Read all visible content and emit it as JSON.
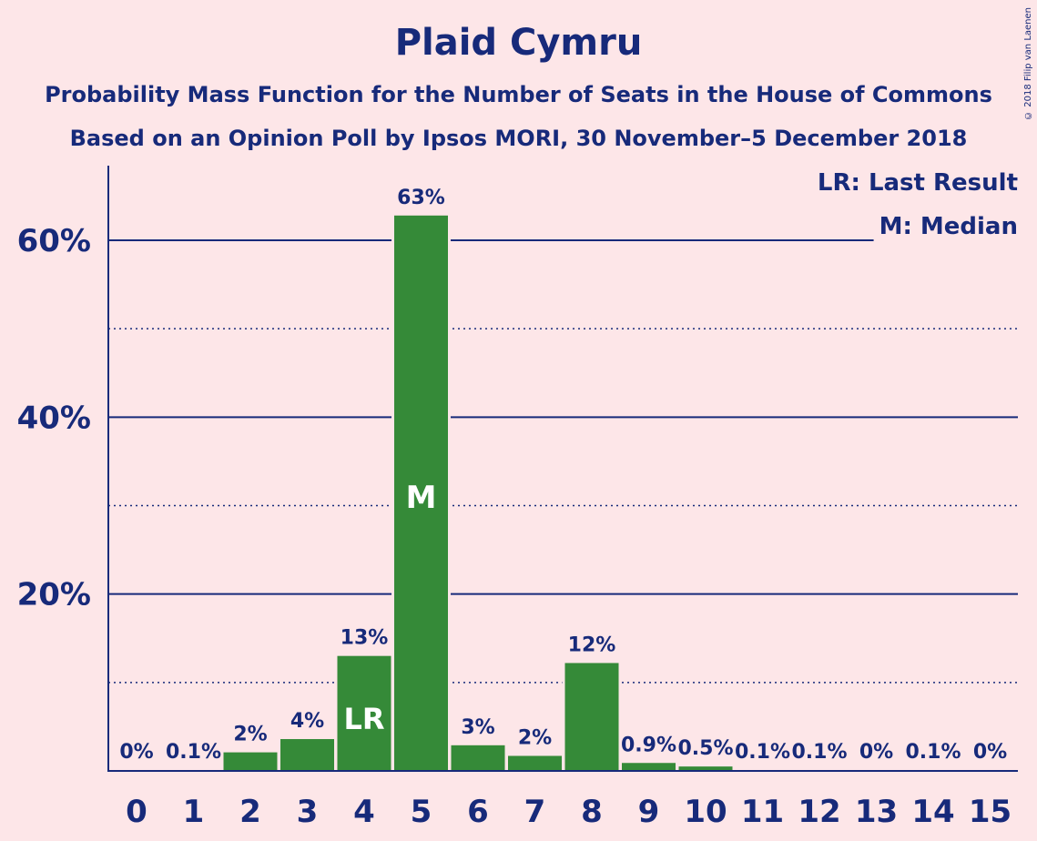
{
  "title": "Plaid Cymru",
  "subtitle1": "Probability Mass Function for the Number of Seats in the House of Commons",
  "subtitle2": "Based on an Opinion Poll by Ipsos MORI, 30 November–5 December 2018",
  "copyright": "© 2018 Filip van Laenen",
  "legend": {
    "last_result": "LR: Last Result",
    "median": "M: Median"
  },
  "colors": {
    "bar": "#358a38",
    "text": "#172a7a",
    "background": "#fde6e8"
  },
  "chart_data": {
    "type": "bar",
    "categories": [
      "0",
      "1",
      "2",
      "3",
      "4",
      "5",
      "6",
      "7",
      "8",
      "9",
      "10",
      "11",
      "12",
      "13",
      "14",
      "15"
    ],
    "values": [
      0,
      0.1,
      2.1,
      3.6,
      13.0,
      62.8,
      2.9,
      1.7,
      12.2,
      0.9,
      0.5,
      0.1,
      0.1,
      0,
      0.1,
      0
    ],
    "labels": [
      "0%",
      "0.1%",
      "2%",
      "4%",
      "13%",
      "63%",
      "3%",
      "2%",
      "12%",
      "0.9%",
      "0.5%",
      "0.1%",
      "0.1%",
      "0%",
      "0.1%",
      "0%"
    ],
    "ylim": [
      0,
      68
    ],
    "yticks": [
      20,
      40,
      60
    ],
    "ytick_labels": [
      "20%",
      "40%",
      "60%"
    ],
    "minor_grid": [
      10,
      30,
      50
    ],
    "last_result_category": "4",
    "last_result_marker": "LR",
    "median_category": "5",
    "median_marker": "M",
    "legend_position": "top-right"
  }
}
